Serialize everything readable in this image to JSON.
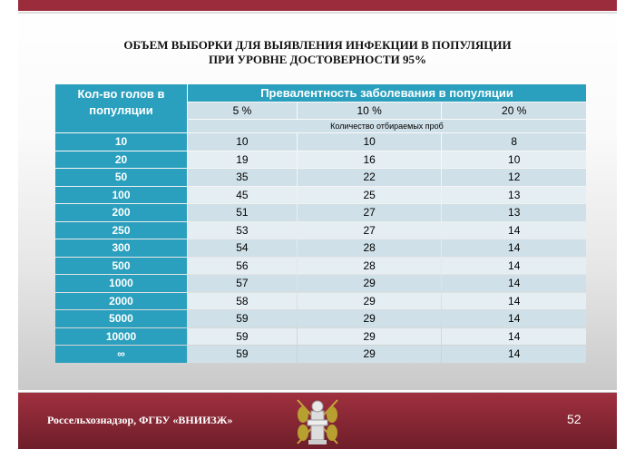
{
  "title": {
    "line1": "ОБЪЕМ ВЫБОРКИ ДЛЯ ВЫЯВЛЕНИЯ ИНФЕКЦИИ В ПОПУЛЯЦИИ",
    "line2": "ПРИ УРОВНЕ ДОСТОВЕРНОСТИ 95%"
  },
  "table": {
    "row_header": "Кол-во голов в популяции",
    "group_header": "Превалентность заболевания в популяции",
    "columns": [
      "5 %",
      "10 %",
      "20 %"
    ],
    "note": "Количество отбираемых проб",
    "rows": [
      {
        "label": "10",
        "values": [
          "10",
          "10",
          "8"
        ]
      },
      {
        "label": "20",
        "values": [
          "19",
          "16",
          "10"
        ]
      },
      {
        "label": "50",
        "values": [
          "35",
          "22",
          "12"
        ]
      },
      {
        "label": "100",
        "values": [
          "45",
          "25",
          "13"
        ]
      },
      {
        "label": "200",
        "values": [
          "51",
          "27",
          "13"
        ]
      },
      {
        "label": "250",
        "values": [
          "53",
          "27",
          "14"
        ]
      },
      {
        "label": "300",
        "values": [
          "54",
          "28",
          "14"
        ]
      },
      {
        "label": "500",
        "values": [
          "56",
          "28",
          "14"
        ]
      },
      {
        "label": "1000",
        "values": [
          "57",
          "29",
          "14"
        ]
      },
      {
        "label": "2000",
        "values": [
          "58",
          "29",
          "14"
        ]
      },
      {
        "label": "5000",
        "values": [
          "59",
          "29",
          "14"
        ]
      },
      {
        "label": "10000",
        "values": [
          "59",
          "29",
          "14"
        ]
      },
      {
        "label": "∞",
        "values": [
          "59",
          "29",
          "14"
        ]
      }
    ]
  },
  "footer": {
    "org": "Россельхознадзор, ФГБУ «ВНИИЗЖ»",
    "page": "52"
  }
}
